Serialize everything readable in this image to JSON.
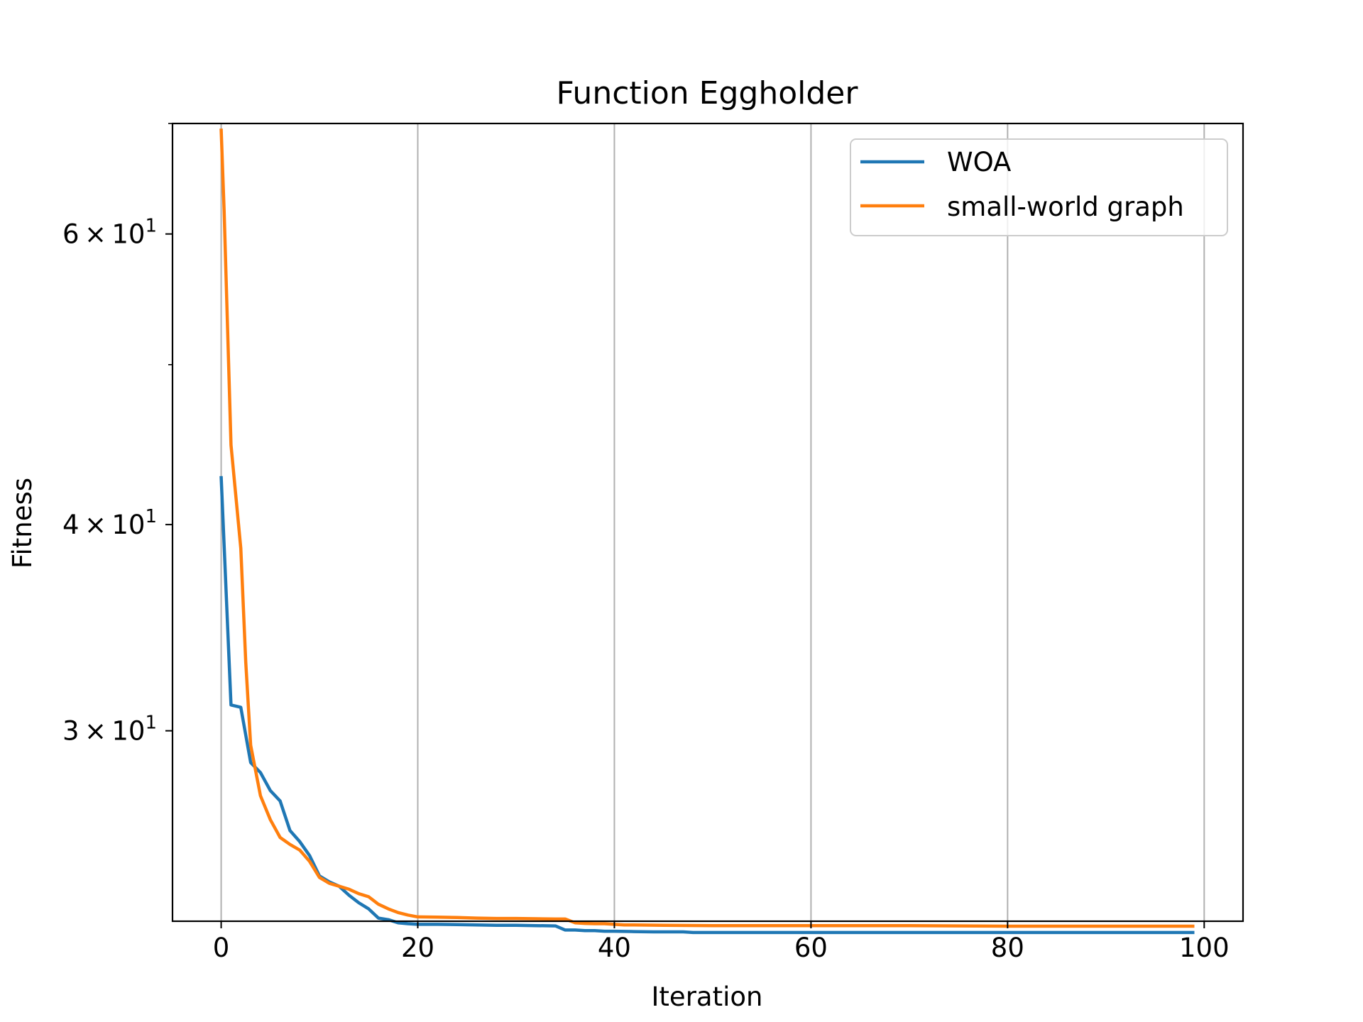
{
  "colors": {
    "background": "#ffffff",
    "axes": "#000000",
    "grid": "#b0b0b0",
    "legend_border": "#cccccc"
  },
  "chart_data": {
    "type": "line",
    "title": "Function Eggholder",
    "xlabel": "Iteration",
    "ylabel": "Fitness",
    "xlim": [
      -4.95,
      103.95
    ],
    "ylim": [
      23.0,
      70.0
    ],
    "yscale": "log",
    "grid": "x-major",
    "legend_position": "top-right",
    "x_ticks": [
      {
        "value": 0,
        "label": "0"
      },
      {
        "value": 20,
        "label": "20"
      },
      {
        "value": 40,
        "label": "40"
      },
      {
        "value": 60,
        "label": "60"
      },
      {
        "value": 80,
        "label": "80"
      },
      {
        "value": 100,
        "label": "100"
      }
    ],
    "y_major_ticks": [
      {
        "value": 30,
        "mantissa": "3",
        "times": "×",
        "base": "10",
        "exponent": "1"
      },
      {
        "value": 40,
        "mantissa": "4",
        "times": "×",
        "base": "10",
        "exponent": "1"
      },
      {
        "value": 60,
        "mantissa": "6",
        "times": "×",
        "base": "10",
        "exponent": "1"
      }
    ],
    "y_minor_ticks": [
      50,
      70
    ],
    "series": [
      {
        "name": "WOA",
        "color": "#1f77b4",
        "x": [
          0,
          1,
          2,
          3,
          4,
          5,
          6,
          7,
          8,
          9,
          10,
          11,
          12,
          13,
          14,
          15,
          16,
          17,
          18,
          19,
          20,
          22,
          24,
          26,
          28,
          30,
          32,
          34,
          35,
          36,
          37,
          38,
          39,
          40,
          42,
          44,
          46,
          47,
          48,
          50,
          55,
          60,
          65,
          70,
          75,
          80,
          85,
          90,
          95,
          99
        ],
        "y": [
          42.8,
          31.1,
          31.0,
          28.7,
          28.3,
          27.6,
          27.2,
          26.1,
          25.7,
          25.2,
          24.5,
          24.3,
          24.15,
          23.85,
          23.6,
          23.4,
          23.1,
          23.05,
          22.95,
          22.92,
          22.9,
          22.9,
          22.89,
          22.88,
          22.87,
          22.87,
          22.86,
          22.85,
          22.72,
          22.72,
          22.7,
          22.7,
          22.68,
          22.68,
          22.67,
          22.66,
          22.66,
          22.66,
          22.64,
          22.64,
          22.64,
          22.64,
          22.64,
          22.64,
          22.64,
          22.64,
          22.64,
          22.64,
          22.64,
          22.64
        ]
      },
      {
        "name": "small-world graph",
        "color": "#ff7f0e",
        "x": [
          0,
          0.3,
          1,
          2,
          2.5,
          3,
          4,
          5,
          6,
          7,
          8,
          9,
          10,
          11,
          12,
          13,
          14,
          15,
          16,
          17,
          18,
          19,
          20,
          22,
          24,
          26,
          28,
          30,
          32,
          34,
          35,
          36,
          37,
          38,
          39,
          40,
          41,
          42,
          45,
          50,
          55,
          60,
          65,
          70,
          75,
          80,
          85,
          90,
          95,
          99
        ],
        "y": [
          69.5,
          62.0,
          44.7,
          38.7,
          33.0,
          29.4,
          27.4,
          26.5,
          25.85,
          25.6,
          25.4,
          25.0,
          24.45,
          24.25,
          24.15,
          24.05,
          23.9,
          23.8,
          23.55,
          23.4,
          23.28,
          23.2,
          23.14,
          23.13,
          23.12,
          23.1,
          23.09,
          23.09,
          23.08,
          23.07,
          23.07,
          22.95,
          22.93,
          22.92,
          22.92,
          22.9,
          22.88,
          22.88,
          22.87,
          22.86,
          22.86,
          22.86,
          22.86,
          22.86,
          22.85,
          22.84,
          22.84,
          22.84,
          22.84,
          22.84
        ]
      }
    ]
  }
}
